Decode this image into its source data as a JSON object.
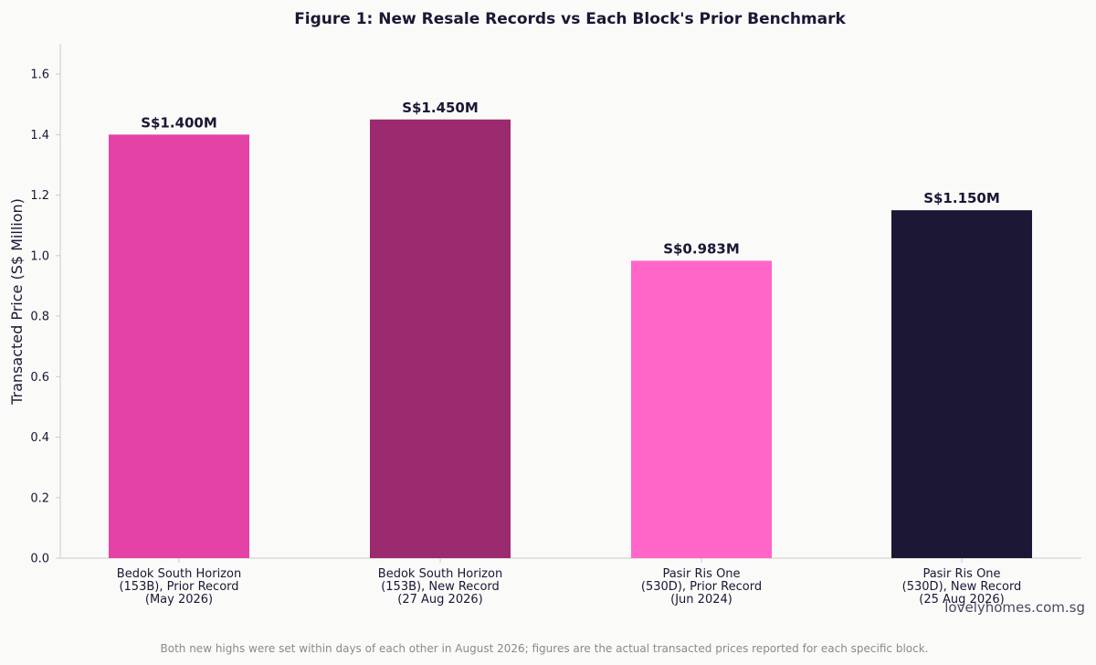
{
  "chart_data": {
    "type": "bar",
    "title": "Figure 1: New Resale Records vs Each Block's Prior Benchmark",
    "ylabel": "Transacted Price (S$ Million)",
    "xlabel": "",
    "ylim": [
      0,
      1.7
    ],
    "yticks": [
      "0.0",
      "0.2",
      "0.4",
      "0.6",
      "0.8",
      "1.0",
      "1.2",
      "1.4",
      "1.6"
    ],
    "grid": false,
    "categories": [
      [
        "Bedok South Horizon",
        "(153B), Prior Record",
        "(May 2026)"
      ],
      [
        "Bedok South Horizon",
        "(153B), New Record",
        "(27 Aug 2026)"
      ],
      [
        "Pasir Ris One",
        "(530D), Prior Record",
        "(Jun 2024)"
      ],
      [
        "Pasir Ris One",
        "(530D), New Record",
        "(25 Aug 2026)"
      ]
    ],
    "values": [
      1.4,
      1.45,
      0.983,
      1.15
    ],
    "data_labels": [
      "S$1.400M",
      "S$1.450M",
      "S$0.983M",
      "S$1.150M"
    ],
    "colors": [
      "#e542a6",
      "#9c2a6f",
      "#ff66c8",
      "#1b1734"
    ]
  },
  "watermark": "lovelyhomes.com.sg",
  "footnote": "Both new highs were set within days of each other in August 2026; figures are the actual transacted prices reported for each specific block."
}
